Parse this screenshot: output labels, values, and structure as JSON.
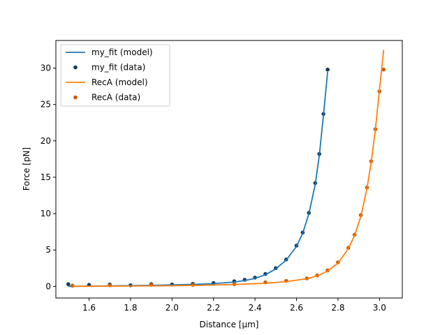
{
  "chart_data": {
    "type": "line",
    "xlabel": "Distance [μm]",
    "ylabel": "Force [pN]",
    "xlim": [
      1.44,
      3.11
    ],
    "ylim": [
      -1.6,
      33.8
    ],
    "xticks": [
      1.6,
      1.8,
      2.0,
      2.2,
      2.4,
      2.6,
      2.8,
      3.0
    ],
    "xtick_labels": [
      "1.6",
      "1.8",
      "2.0",
      "2.2",
      "2.4",
      "2.6",
      "2.8",
      "3.0"
    ],
    "yticks": [
      0,
      5,
      10,
      15,
      20,
      25,
      30
    ],
    "ytick_labels": [
      "0",
      "5",
      "10",
      "15",
      "20",
      "25",
      "30"
    ],
    "grid": false,
    "legend_position": "top-left",
    "series": [
      {
        "name": "my_fit (model)",
        "kind": "line",
        "color": "#1f77b4",
        "x": [
          1.5,
          1.6,
          1.7,
          1.8,
          1.9,
          2.0,
          2.1,
          2.2,
          2.3,
          2.35,
          2.4,
          2.45,
          2.5,
          2.55,
          2.6,
          2.63,
          2.66,
          2.69,
          2.71,
          2.73,
          2.75
        ],
        "y": [
          0.0,
          0.03,
          0.06,
          0.1,
          0.14,
          0.2,
          0.27,
          0.38,
          0.6,
          0.8,
          1.1,
          1.6,
          2.4,
          3.6,
          5.5,
          7.3,
          10.0,
          14.0,
          18.0,
          23.5,
          29.5
        ]
      },
      {
        "name": "my_fit (data)",
        "kind": "points",
        "color": "#0f3a60",
        "x": [
          1.5,
          1.6,
          1.7,
          1.8,
          1.9,
          2.0,
          2.1,
          2.2,
          2.3,
          2.35,
          2.4,
          2.45,
          2.5,
          2.55,
          2.6,
          2.63,
          2.66,
          2.69,
          2.71,
          2.73,
          2.75
        ],
        "y": [
          0.3,
          0.2,
          0.25,
          0.15,
          0.3,
          0.25,
          0.35,
          0.45,
          0.7,
          0.9,
          1.2,
          1.7,
          2.5,
          3.7,
          5.6,
          7.4,
          10.1,
          14.2,
          18.2,
          23.7,
          29.8
        ]
      },
      {
        "name": "RecA (model)",
        "kind": "line",
        "color": "#ff7f0e",
        "x": [
          1.52,
          1.7,
          1.9,
          2.1,
          2.3,
          2.45,
          2.55,
          2.65,
          2.7,
          2.75,
          2.8,
          2.85,
          2.88,
          2.91,
          2.94,
          2.96,
          2.98,
          3.0,
          3.02
        ],
        "y": [
          0.0,
          0.03,
          0.07,
          0.13,
          0.25,
          0.42,
          0.65,
          1.05,
          1.45,
          2.1,
          3.2,
          5.2,
          7.0,
          9.6,
          13.5,
          17.0,
          21.5,
          27.0,
          32.5
        ]
      },
      {
        "name": "RecA (data)",
        "kind": "points",
        "color": "#c75a06",
        "x": [
          1.52,
          1.7,
          1.9,
          2.1,
          2.3,
          2.45,
          2.55,
          2.65,
          2.7,
          2.75,
          2.8,
          2.85,
          2.88,
          2.91,
          2.94,
          2.96,
          2.98,
          3.0,
          3.02
        ],
        "y": [
          0.1,
          0.15,
          0.2,
          0.2,
          0.3,
          0.55,
          0.75,
          1.1,
          1.5,
          2.2,
          3.3,
          5.3,
          7.1,
          9.8,
          13.6,
          17.2,
          21.6,
          26.8,
          29.8
        ]
      }
    ]
  }
}
